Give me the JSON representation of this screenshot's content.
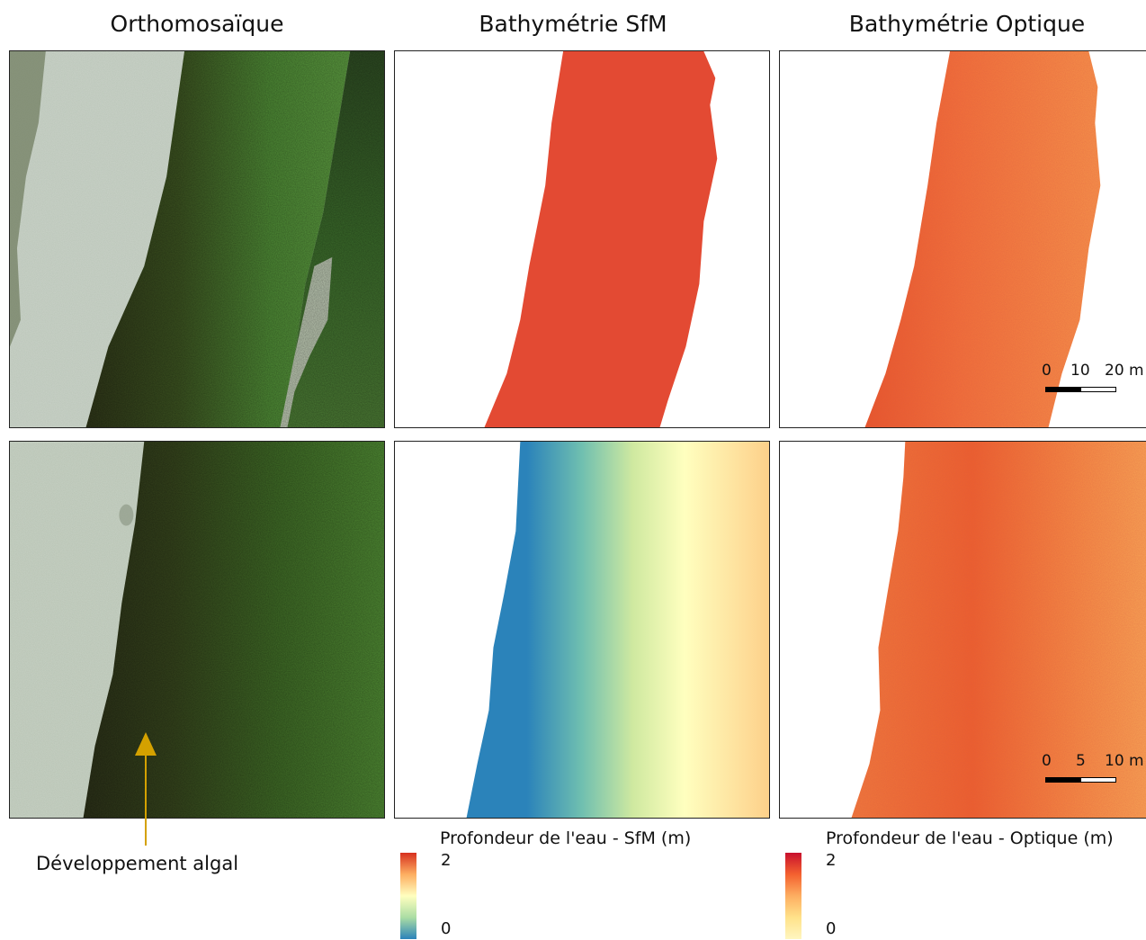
{
  "columns": [
    {
      "title": "Orthomosaïque"
    },
    {
      "title": "Bathymétrie SfM"
    },
    {
      "title": "Bathymétrie Optique"
    }
  ],
  "scalebars": [
    {
      "labels": [
        "0",
        "10",
        "20 m"
      ]
    },
    {
      "labels": [
        "0",
        "5",
        "10 m"
      ]
    }
  ],
  "legends": [
    {
      "title": "Profondeur de l'eau - SfM (m)",
      "max": "2",
      "min": "0",
      "colors": [
        "#d7301f",
        "#fdae61",
        "#ffffbf",
        "#abdda4",
        "#2b83ba"
      ]
    },
    {
      "title": "Profondeur de l'eau - Optique (m)",
      "max": "2",
      "min": "0",
      "colors": [
        "#c8102e",
        "#f4612f",
        "#fdae61",
        "#ffe28a",
        "#fff6c0"
      ]
    }
  ],
  "annotation": {
    "text": "Développement algal",
    "arrow_color": "#d4a100"
  }
}
